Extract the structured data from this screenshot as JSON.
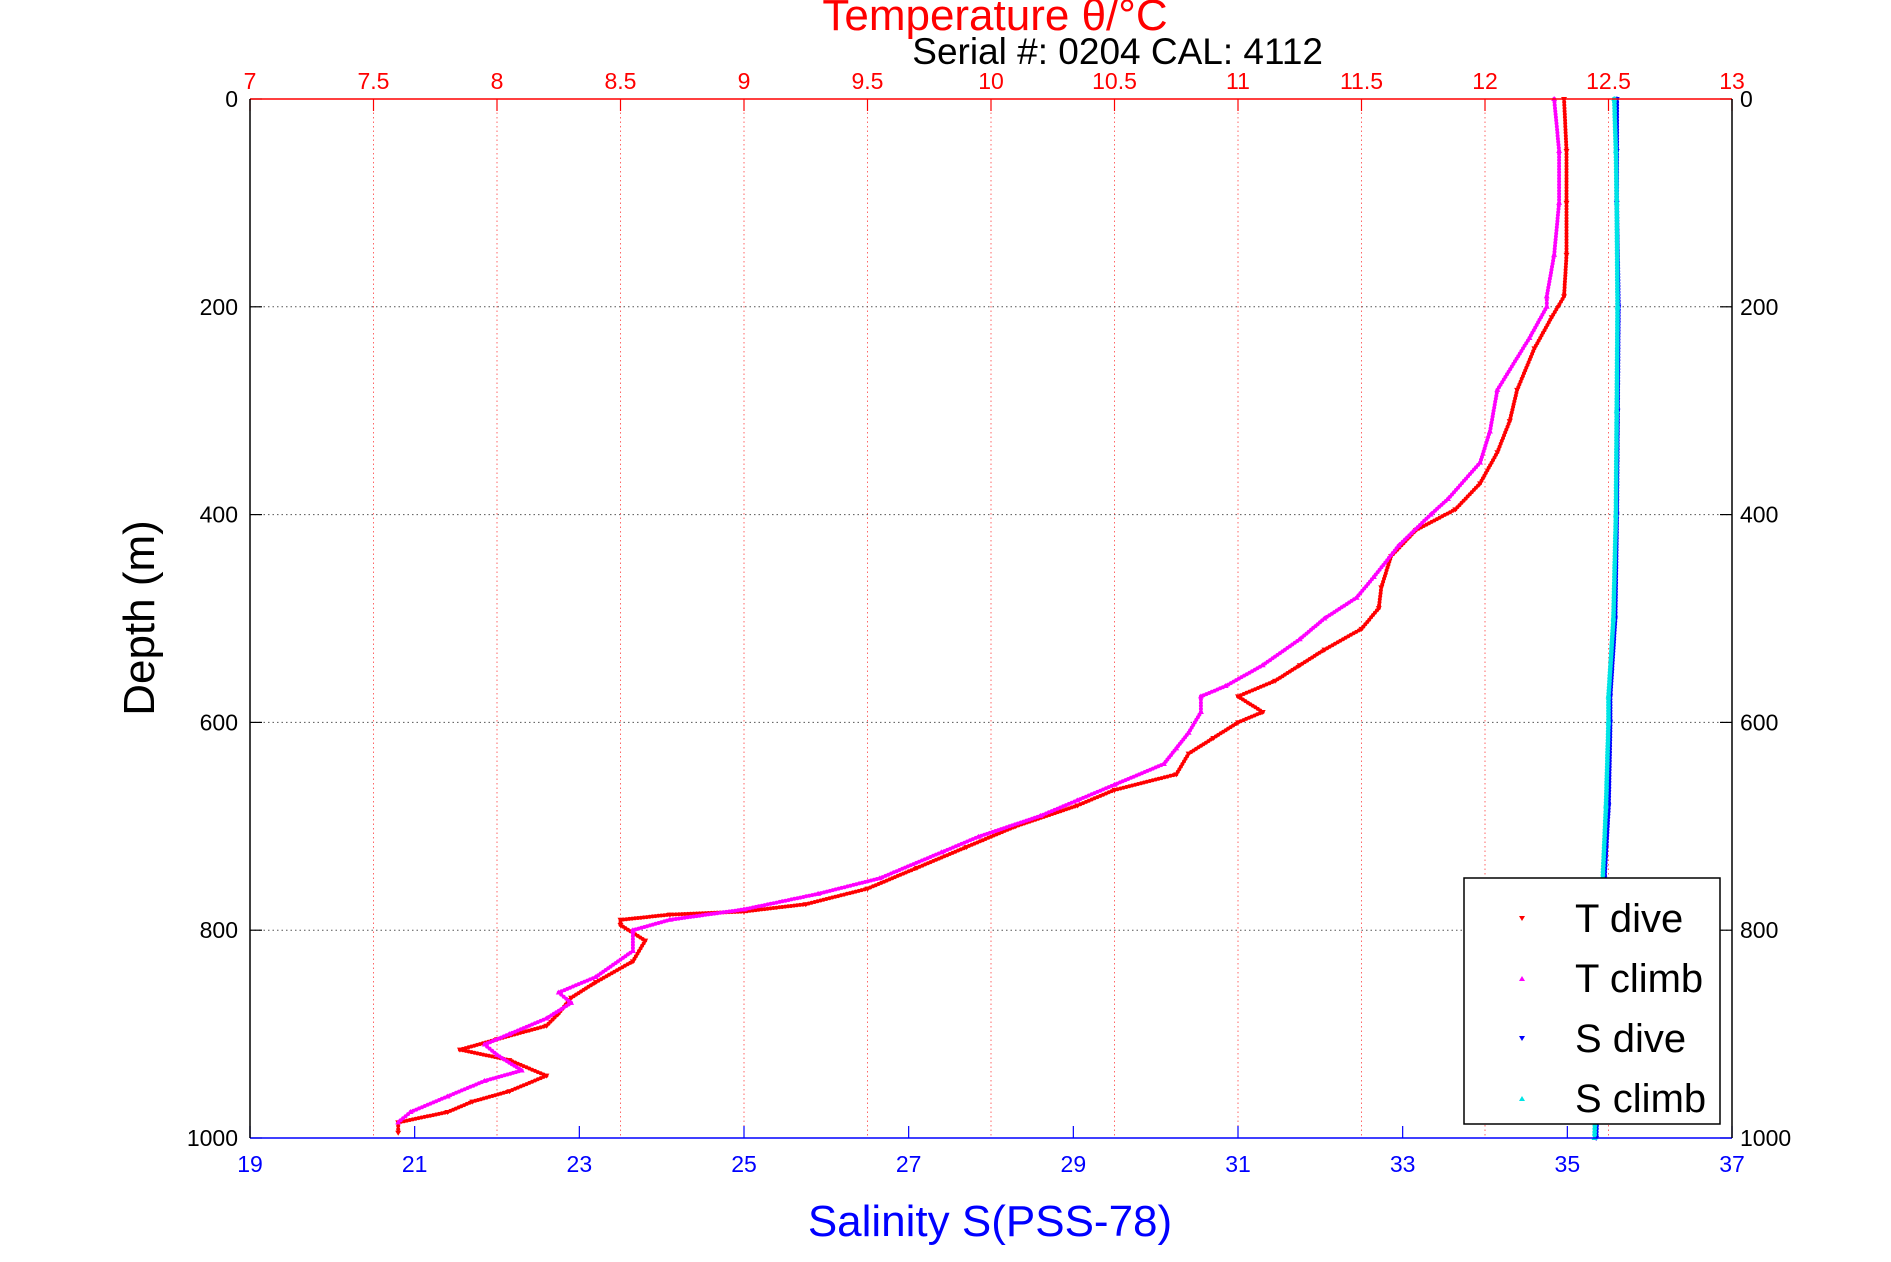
{
  "chart_data": {
    "type": "scatter",
    "title_top": "Temperature θ/°C",
    "subtitle": "Serial #: 0204  CAL: 4112",
    "xlabel_bottom": "Salinity S(PSS-78)",
    "ylabel": "Depth (m)",
    "x_top": {
      "range": [
        7,
        13
      ],
      "ticks": [
        7,
        7.5,
        8,
        8.5,
        9,
        9.5,
        10,
        10.5,
        11,
        11.5,
        12,
        12.5,
        13
      ],
      "tick_labels": [
        "7",
        "7.5",
        "8",
        "8.5",
        "9",
        "9.5",
        "10",
        "10.5",
        "11",
        "11.5",
        "12",
        "12.5",
        "13"
      ],
      "color": "#ff0000"
    },
    "x_bottom": {
      "range": [
        19,
        37
      ],
      "ticks": [
        19,
        21,
        23,
        25,
        27,
        29,
        31,
        33,
        35,
        37
      ],
      "tick_labels": [
        "19",
        "21",
        "23",
        "25",
        "27",
        "29",
        "31",
        "33",
        "35",
        "37"
      ],
      "color": "#0000ff"
    },
    "y": {
      "range": [
        0,
        1000
      ],
      "reversed": true,
      "ticks": [
        0,
        200,
        400,
        600,
        800,
        1000
      ],
      "tick_labels": [
        "0",
        "200",
        "400",
        "600",
        "800",
        "1000"
      ]
    },
    "grid": true,
    "legend_position": "bottom-right",
    "series": [
      {
        "name": "T dive",
        "axis": "temperature",
        "color": "#ff0000",
        "marker": "triangle-down",
        "points": [
          [
            12.32,
            0
          ],
          [
            12.33,
            50
          ],
          [
            12.33,
            100
          ],
          [
            12.33,
            150
          ],
          [
            12.32,
            190
          ],
          [
            12.27,
            210
          ],
          [
            12.2,
            240
          ],
          [
            12.13,
            280
          ],
          [
            12.1,
            310
          ],
          [
            12.05,
            340
          ],
          [
            11.98,
            370
          ],
          [
            11.88,
            395
          ],
          [
            11.72,
            415
          ],
          [
            11.62,
            440
          ],
          [
            11.58,
            470
          ],
          [
            11.57,
            490
          ],
          [
            11.5,
            510
          ],
          [
            11.35,
            530
          ],
          [
            11.25,
            545
          ],
          [
            11.15,
            560
          ],
          [
            11.0,
            575
          ],
          [
            11.1,
            590
          ],
          [
            11.0,
            600
          ],
          [
            10.9,
            615
          ],
          [
            10.8,
            630
          ],
          [
            10.75,
            650
          ],
          [
            10.5,
            665
          ],
          [
            10.35,
            680
          ],
          [
            10.1,
            700
          ],
          [
            9.9,
            720
          ],
          [
            9.7,
            740
          ],
          [
            9.5,
            760
          ],
          [
            9.25,
            775
          ],
          [
            9.0,
            782
          ],
          [
            8.7,
            785
          ],
          [
            8.5,
            790
          ],
          [
            8.5,
            795
          ],
          [
            8.6,
            810
          ],
          [
            8.55,
            830
          ],
          [
            8.4,
            850
          ],
          [
            8.3,
            865
          ],
          [
            8.25,
            880
          ],
          [
            8.2,
            892
          ],
          [
            8.0,
            905
          ],
          [
            7.85,
            915
          ],
          [
            8.05,
            925
          ],
          [
            8.2,
            940
          ],
          [
            8.05,
            955
          ],
          [
            7.9,
            965
          ],
          [
            7.8,
            975
          ],
          [
            7.6,
            985
          ],
          [
            7.6,
            995
          ]
        ]
      },
      {
        "name": "T climb",
        "axis": "temperature",
        "color": "#ff00ff",
        "marker": "triangle-up",
        "points": [
          [
            12.28,
            0
          ],
          [
            12.3,
            50
          ],
          [
            12.3,
            100
          ],
          [
            12.28,
            150
          ],
          [
            12.25,
            190
          ],
          [
            12.25,
            200
          ],
          [
            12.18,
            230
          ],
          [
            12.05,
            280
          ],
          [
            12.02,
            320
          ],
          [
            11.98,
            350
          ],
          [
            11.85,
            385
          ],
          [
            11.78,
            400
          ],
          [
            11.65,
            430
          ],
          [
            11.55,
            460
          ],
          [
            11.48,
            480
          ],
          [
            11.35,
            500
          ],
          [
            11.25,
            520
          ],
          [
            11.1,
            545
          ],
          [
            10.95,
            565
          ],
          [
            10.85,
            575
          ],
          [
            10.85,
            590
          ],
          [
            10.8,
            610
          ],
          [
            10.75,
            625
          ],
          [
            10.7,
            640
          ],
          [
            10.5,
            660
          ],
          [
            10.35,
            675
          ],
          [
            10.2,
            690
          ],
          [
            9.95,
            710
          ],
          [
            9.8,
            725
          ],
          [
            9.55,
            750
          ],
          [
            9.3,
            765
          ],
          [
            9.0,
            780
          ],
          [
            8.7,
            790
          ],
          [
            8.55,
            800
          ],
          [
            8.55,
            820
          ],
          [
            8.4,
            845
          ],
          [
            8.25,
            860
          ],
          [
            8.3,
            870
          ],
          [
            8.2,
            885
          ],
          [
            8.05,
            900
          ],
          [
            7.95,
            910
          ],
          [
            8.0,
            920
          ],
          [
            8.1,
            935
          ],
          [
            7.95,
            945
          ],
          [
            7.8,
            960
          ],
          [
            7.65,
            975
          ],
          [
            7.6,
            985
          ]
        ]
      },
      {
        "name": "S dive",
        "axis": "salinity",
        "color": "#0000ff",
        "marker": "triangle-down",
        "points": [
          [
            35.6,
            0
          ],
          [
            35.6,
            50
          ],
          [
            35.6,
            100
          ],
          [
            35.62,
            200
          ],
          [
            35.61,
            300
          ],
          [
            35.6,
            400
          ],
          [
            35.58,
            500
          ],
          [
            35.52,
            575
          ],
          [
            35.52,
            600
          ],
          [
            35.5,
            680
          ],
          [
            35.45,
            750
          ],
          [
            35.4,
            800
          ],
          [
            35.38,
            880
          ],
          [
            35.37,
            950
          ],
          [
            35.35,
            1000
          ]
        ]
      },
      {
        "name": "S climb",
        "axis": "salinity",
        "color": "#00e5e5",
        "marker": "triangle-up",
        "points": [
          [
            35.57,
            0
          ],
          [
            35.59,
            50
          ],
          [
            35.6,
            100
          ],
          [
            35.61,
            200
          ],
          [
            35.6,
            300
          ],
          [
            35.59,
            400
          ],
          [
            35.56,
            500
          ],
          [
            35.5,
            575
          ],
          [
            35.5,
            600
          ],
          [
            35.47,
            680
          ],
          [
            35.43,
            750
          ],
          [
            35.39,
            800
          ],
          [
            35.37,
            880
          ],
          [
            35.35,
            950
          ],
          [
            35.33,
            1000
          ]
        ]
      }
    ]
  }
}
